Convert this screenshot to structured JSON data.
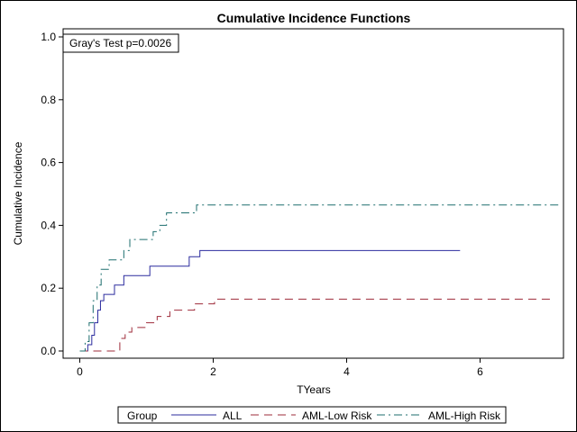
{
  "chart_data": {
    "type": "line",
    "step": true,
    "title": "Cumulative Incidence Functions",
    "xlabel": "TYears",
    "ylabel": "Cumulative Incidence",
    "xlim": [
      -0.25,
      7.25
    ],
    "ylim": [
      0,
      1.0
    ],
    "xticks": [
      0,
      2,
      4,
      6
    ],
    "yticks": [
      0.0,
      0.2,
      0.4,
      0.6,
      0.8,
      1.0
    ],
    "xtick_labels": [
      "0",
      "2",
      "4",
      "6"
    ],
    "ytick_labels": [
      "0.0",
      "0.2",
      "0.4",
      "0.6",
      "0.8",
      "1.0"
    ],
    "annotation": "Gray's Test p=0.0026",
    "grid": false,
    "legend": {
      "title": "Group",
      "placement": "bottom"
    },
    "series": [
      {
        "name": "ALL",
        "color": "#2b2b9e",
        "dash": "solid",
        "x": [
          0,
          0.12,
          0.18,
          0.22,
          0.27,
          0.31,
          0.36,
          0.52,
          0.66,
          1.05,
          1.64,
          1.8,
          5.7
        ],
        "y": [
          0,
          0.02,
          0.05,
          0.09,
          0.13,
          0.16,
          0.18,
          0.21,
          0.24,
          0.27,
          0.3,
          0.32,
          0.32
        ]
      },
      {
        "name": "AML-Low Risk",
        "color": "#9e2b3a",
        "dash": "long",
        "x": [
          0,
          0.12,
          0.6,
          0.68,
          0.78,
          1.0,
          1.16,
          1.35,
          1.72,
          2.02,
          7.1
        ],
        "y": [
          0,
          0.0,
          0.04,
          0.06,
          0.075,
          0.09,
          0.11,
          0.13,
          0.15,
          0.165,
          0.165
        ]
      },
      {
        "name": "AML-High Risk",
        "color": "#1d6e6e",
        "dash": "dashdot",
        "x": [
          0,
          0.08,
          0.14,
          0.2,
          0.26,
          0.32,
          0.44,
          0.66,
          0.75,
          1.1,
          1.2,
          1.3,
          1.75,
          7.2
        ],
        "y": [
          0,
          0.03,
          0.09,
          0.16,
          0.21,
          0.26,
          0.29,
          0.32,
          0.355,
          0.38,
          0.4,
          0.44,
          0.465,
          0.465
        ]
      }
    ]
  }
}
